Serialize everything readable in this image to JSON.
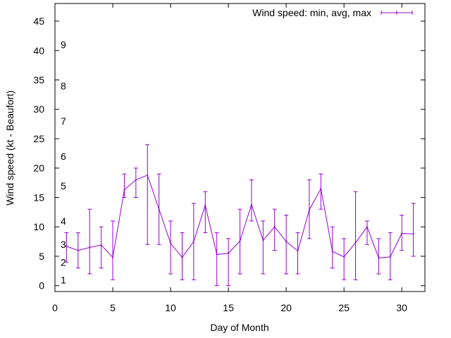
{
  "chart_data": {
    "type": "line",
    "xlabel": "Day of Month",
    "ylabel": "Wind speed (kt - Beaufort)",
    "xlim": [
      0,
      32
    ],
    "ylim": [
      -1,
      48
    ],
    "x_ticks": [
      "0",
      "5",
      "10",
      "15",
      "20",
      "25",
      "30"
    ],
    "y_ticks": [
      "0",
      "5",
      "10",
      "15",
      "20",
      "25",
      "30",
      "35",
      "40",
      "45"
    ],
    "beaufort_labels": [
      {
        "label": "1",
        "y": 1
      },
      {
        "label": "2",
        "y": 4
      },
      {
        "label": "3",
        "y": 7
      },
      {
        "label": "4",
        "y": 11
      },
      {
        "label": "5",
        "y": 17
      },
      {
        "label": "6",
        "y": 22
      },
      {
        "label": "7",
        "y": 28
      },
      {
        "label": "8",
        "y": 34
      },
      {
        "label": "9",
        "y": 41
      }
    ],
    "series": [
      {
        "name": "Wind speed: min, avg, max",
        "color": "#9400d3",
        "points": [
          {
            "x": 1,
            "min": 4,
            "avg": 6.7,
            "max": 9
          },
          {
            "x": 2,
            "min": 3,
            "avg": 6.0,
            "max": 9
          },
          {
            "x": 3,
            "min": 2,
            "avg": 6.5,
            "max": 13
          },
          {
            "x": 4,
            "min": 3,
            "avg": 6.9,
            "max": 10
          },
          {
            "x": 5,
            "min": 1,
            "avg": 4.8,
            "max": 11
          },
          {
            "x": 6,
            "min": 15,
            "avg": 16.3,
            "max": 19
          },
          {
            "x": 7,
            "min": 15,
            "avg": 18.0,
            "max": 20
          },
          {
            "x": 8,
            "min": 7,
            "avg": 18.8,
            "max": 24
          },
          {
            "x": 9,
            "min": 7,
            "avg": 13.0,
            "max": 19
          },
          {
            "x": 10,
            "min": 2,
            "avg": 7.2,
            "max": 11
          },
          {
            "x": 11,
            "min": 1,
            "avg": 4.8,
            "max": 9
          },
          {
            "x": 12,
            "min": 1,
            "avg": 7.5,
            "max": 14
          },
          {
            "x": 13,
            "min": 9,
            "avg": 13.7,
            "max": 16
          },
          {
            "x": 14,
            "min": 0,
            "avg": 5.3,
            "max": 9
          },
          {
            "x": 15,
            "min": 0,
            "avg": 5.5,
            "max": 8
          },
          {
            "x": 16,
            "min": 2,
            "avg": 7.6,
            "max": 13
          },
          {
            "x": 17,
            "min": 11,
            "avg": 13.8,
            "max": 18
          },
          {
            "x": 18,
            "min": 2,
            "avg": 7.7,
            "max": 11
          },
          {
            "x": 19,
            "min": 6,
            "avg": 10.0,
            "max": 13
          },
          {
            "x": 20,
            "min": 2,
            "avg": 7.5,
            "max": 12
          },
          {
            "x": 21,
            "min": 2,
            "avg": 5.9,
            "max": 9
          },
          {
            "x": 22,
            "min": 8,
            "avg": 12.9,
            "max": 18
          },
          {
            "x": 23,
            "min": 13,
            "avg": 16.5,
            "max": 19
          },
          {
            "x": 24,
            "min": 3,
            "avg": 5.8,
            "max": 10
          },
          {
            "x": 25,
            "min": 1,
            "avg": 4.9,
            "max": 8
          },
          {
            "x": 26,
            "min": 1,
            "avg": 7.3,
            "max": 16
          },
          {
            "x": 27,
            "min": 7,
            "avg": 10.0,
            "max": 11
          },
          {
            "x": 28,
            "min": 2,
            "avg": 4.7,
            "max": 8
          },
          {
            "x": 29,
            "min": 1,
            "avg": 4.9,
            "max": 9
          },
          {
            "x": 30,
            "min": 6,
            "avg": 8.9,
            "max": 12
          },
          {
            "x": 31,
            "min": 5,
            "avg": 8.8,
            "max": 14
          }
        ]
      }
    ],
    "legend_position": "top-right",
    "grid": false
  }
}
